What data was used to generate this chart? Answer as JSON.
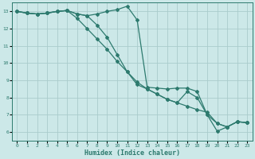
{
  "xlabel": "Humidex (Indice chaleur)",
  "bg_color": "#cce8e8",
  "grid_color": "#aacccc",
  "line_color": "#2d7a6e",
  "xlim": [
    -0.5,
    23.5
  ],
  "ylim": [
    5.5,
    13.5
  ],
  "xticks": [
    0,
    1,
    2,
    3,
    4,
    5,
    6,
    7,
    8,
    9,
    10,
    11,
    12,
    13,
    14,
    15,
    16,
    17,
    18,
    19,
    20,
    21,
    22,
    23
  ],
  "yticks": [
    6,
    7,
    8,
    9,
    10,
    11,
    12,
    13
  ],
  "line1_x": [
    0,
    1,
    2,
    3,
    4,
    5,
    6,
    7,
    8,
    9,
    10,
    11,
    12,
    13,
    14,
    15,
    16,
    17,
    18,
    19,
    20,
    21,
    22,
    23
  ],
  "line1_y": [
    13.0,
    12.9,
    12.85,
    12.9,
    13.0,
    13.05,
    12.85,
    12.75,
    12.85,
    13.0,
    13.1,
    13.3,
    12.5,
    8.6,
    8.55,
    8.5,
    8.55,
    8.55,
    8.35,
    7.0,
    6.05,
    6.3,
    6.6,
    6.55
  ],
  "line2_x": [
    0,
    1,
    2,
    3,
    4,
    5,
    6,
    7,
    8,
    9,
    10,
    11,
    12,
    13,
    14,
    15,
    16,
    17,
    18,
    19,
    20,
    21,
    22,
    23
  ],
  "line2_y": [
    13.0,
    12.9,
    12.85,
    12.9,
    13.0,
    13.05,
    12.6,
    12.0,
    11.4,
    10.8,
    10.1,
    9.5,
    8.9,
    8.5,
    8.2,
    7.9,
    7.7,
    7.5,
    7.3,
    7.15,
    6.5,
    6.3,
    6.6,
    6.55
  ],
  "line3_x": [
    0,
    1,
    2,
    3,
    4,
    5,
    6,
    7,
    8,
    9,
    10,
    11,
    12,
    13,
    14,
    15,
    16,
    17,
    18,
    19,
    20,
    21,
    22,
    23
  ],
  "line3_y": [
    13.0,
    12.9,
    12.85,
    12.9,
    13.0,
    13.05,
    12.85,
    12.75,
    12.2,
    11.5,
    10.5,
    9.5,
    8.75,
    8.5,
    8.2,
    7.9,
    7.7,
    8.35,
    8.0,
    7.0,
    6.5,
    6.3,
    6.6,
    6.55
  ]
}
